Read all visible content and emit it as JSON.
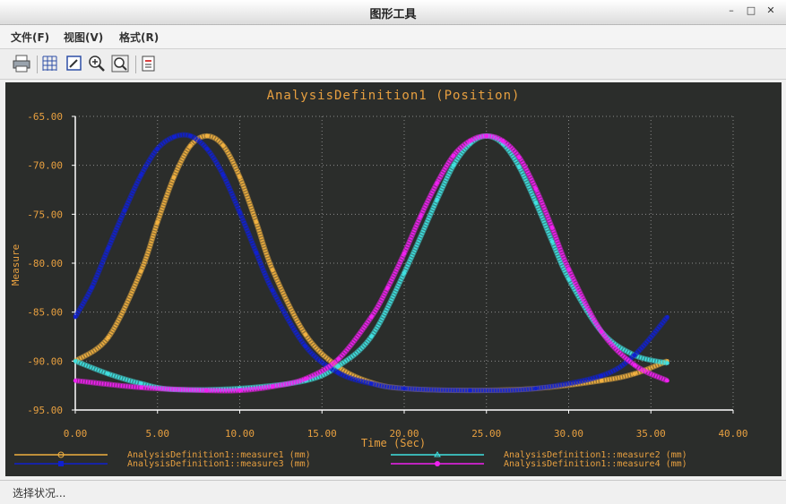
{
  "window": {
    "title": "图形工具",
    "controls": {
      "minimize": "–",
      "maximize": "□",
      "close": "✕"
    }
  },
  "menu": {
    "file": "文件(F)",
    "view": "视图(V)",
    "format": "格式(R)"
  },
  "toolbar": {
    "buttons": [
      {
        "name": "print-button",
        "icon": "printer-icon"
      },
      {
        "name": "grid-button",
        "icon": "grid-icon"
      },
      {
        "name": "edit-button",
        "icon": "edit-icon"
      },
      {
        "name": "zoom-in-button",
        "icon": "zoom-in-icon"
      },
      {
        "name": "zoom-fit-button",
        "icon": "zoom-fit-icon"
      },
      {
        "name": "export-button",
        "icon": "export-icon"
      }
    ]
  },
  "status": "选择状况...",
  "colors": {
    "plot_bg": "#2b2d2b",
    "axis": "#ffffff",
    "text": "#e8a040"
  },
  "chart_data": {
    "type": "line",
    "title": "AnalysisDefinition1 (Position)",
    "xlabel": "Time (Sec)",
    "ylabel": "Measure",
    "xlim": [
      0,
      40
    ],
    "ylim": [
      -95,
      -65
    ],
    "xticks": [
      "0.00",
      "5.00",
      "10.00",
      "15.00",
      "20.00",
      "25.00",
      "30.00",
      "35.00",
      "40.00"
    ],
    "yticks": [
      "-65.00",
      "-70.00",
      "-75.00",
      "-80.00",
      "-85.00",
      "-90.00",
      "-95.00"
    ],
    "grid": true,
    "legend_position": "bottom",
    "series": [
      {
        "name": "AnalysisDefinition1::measure1 (mm)",
        "color": "#f0b040",
        "marker": "circle",
        "x": [
          0,
          2,
          4,
          5,
          6,
          7,
          8,
          9,
          10,
          11,
          12,
          14,
          16,
          18,
          20,
          24,
          28,
          32,
          34,
          36
        ],
        "y": [
          -90.0,
          -87.6,
          -80.8,
          -75.8,
          -71.2,
          -68.0,
          -67.0,
          -68.0,
          -71.2,
          -75.8,
          -80.7,
          -87.3,
          -90.6,
          -92.2,
          -92.8,
          -93.0,
          -92.8,
          -92.0,
          -91.3,
          -90.0
        ]
      },
      {
        "name": "AnalysisDefinition1::measure2 (mm)",
        "color": "#40e0e0",
        "marker": "triangle",
        "x": [
          0,
          2,
          4,
          6,
          10,
          14,
          16,
          18,
          20,
          22,
          23,
          24,
          25,
          26,
          27,
          28,
          29,
          30,
          32,
          34,
          36
        ],
        "y": [
          -90.0,
          -91.3,
          -92.3,
          -92.9,
          -92.8,
          -92.0,
          -90.5,
          -87.5,
          -81.0,
          -73.5,
          -70.0,
          -67.8,
          -67.0,
          -67.8,
          -70.2,
          -73.8,
          -77.8,
          -81.6,
          -87.0,
          -89.4,
          -90.2
        ]
      },
      {
        "name": "AnalysisDefinition1::measure3 (mm)",
        "color": "#1020d0",
        "marker": "square",
        "x": [
          0,
          1,
          2,
          3,
          4,
          5,
          6,
          7,
          8,
          9,
          10,
          11,
          12,
          14,
          16,
          18,
          20,
          24,
          28,
          32,
          34,
          36
        ],
        "y": [
          -85.5,
          -82.5,
          -78.5,
          -74.6,
          -71.0,
          -68.3,
          -67.1,
          -67.0,
          -68.3,
          -71.0,
          -74.8,
          -78.9,
          -82.8,
          -88.5,
          -91.2,
          -92.3,
          -92.8,
          -93.0,
          -92.8,
          -91.5,
          -89.4,
          -85.5
        ]
      },
      {
        "name": "AnalysisDefinition1::measure4 (mm)",
        "color": "#f020f0",
        "marker": "dot",
        "x": [
          0,
          4,
          8,
          10,
          12,
          14,
          16,
          18,
          19,
          20,
          21,
          22,
          23,
          24,
          25,
          26,
          27,
          28,
          29,
          30,
          32,
          34,
          36
        ],
        "y": [
          -92.0,
          -92.7,
          -93.0,
          -93.0,
          -92.6,
          -91.8,
          -89.8,
          -85.5,
          -82.5,
          -79.0,
          -75.2,
          -71.8,
          -69.0,
          -67.5,
          -67.0,
          -67.5,
          -69.2,
          -72.4,
          -76.4,
          -80.6,
          -87.0,
          -90.4,
          -92.0
        ]
      }
    ]
  }
}
